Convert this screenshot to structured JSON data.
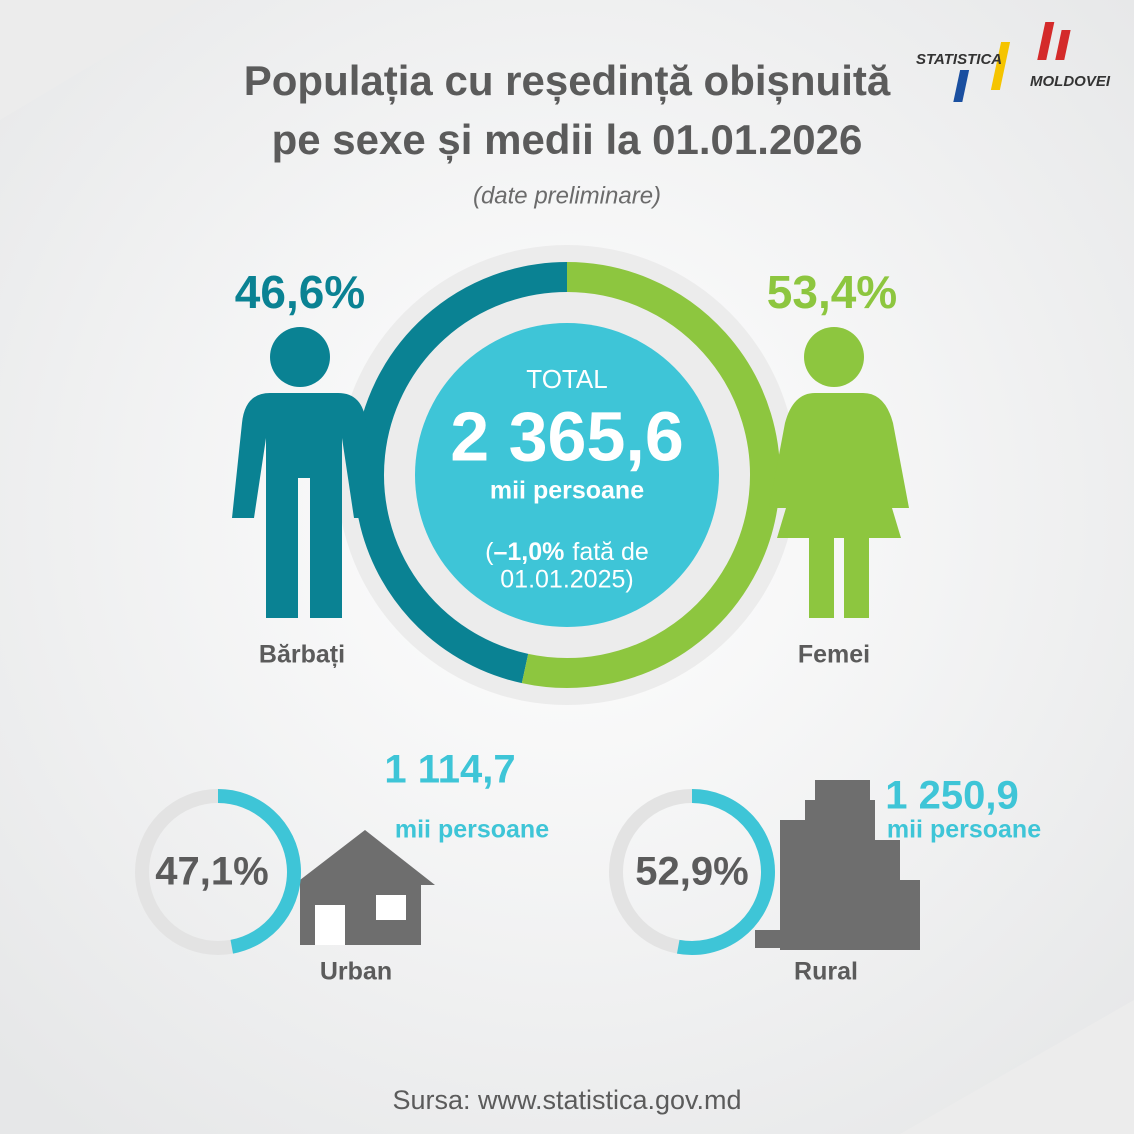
{
  "logo": {
    "line1": "STATISTICA",
    "line2": "MOLDOVEI"
  },
  "header": {
    "title_line1": "Populația cu reședință obișnuită",
    "title_line2": "pe sexe și medii la 01.01.2026",
    "subtitle": "(date preliminare)"
  },
  "total": {
    "heading": "TOTAL",
    "value": "2 365,6",
    "unit": "mii persoane",
    "change_open": "(",
    "change": "–1,0%",
    "change_text": "fată de",
    "change_date": "01.01.2025)"
  },
  "gender": {
    "men": {
      "label": "Bărbați",
      "share": {
        "value": 46.6,
        "label": "46,6%"
      },
      "color": "#0a8293"
    },
    "women": {
      "label": "Femei",
      "share": {
        "value": 53.4,
        "label": "53,4%"
      },
      "color": "#8dc63f"
    }
  },
  "area": {
    "urban": {
      "label": "Urban",
      "share": {
        "value": 47.1,
        "label": "47,1%"
      },
      "count": "1 114,7",
      "unit": "mii persoane"
    },
    "rural": {
      "label": "Rural",
      "share": {
        "value": 52.9,
        "label": "52,9%"
      },
      "count": "1 250,9",
      "unit": "mii persoane"
    },
    "color": "#3ec5d7"
  },
  "footer": {
    "source": "Sursa: www.statistica.gov.md"
  }
}
